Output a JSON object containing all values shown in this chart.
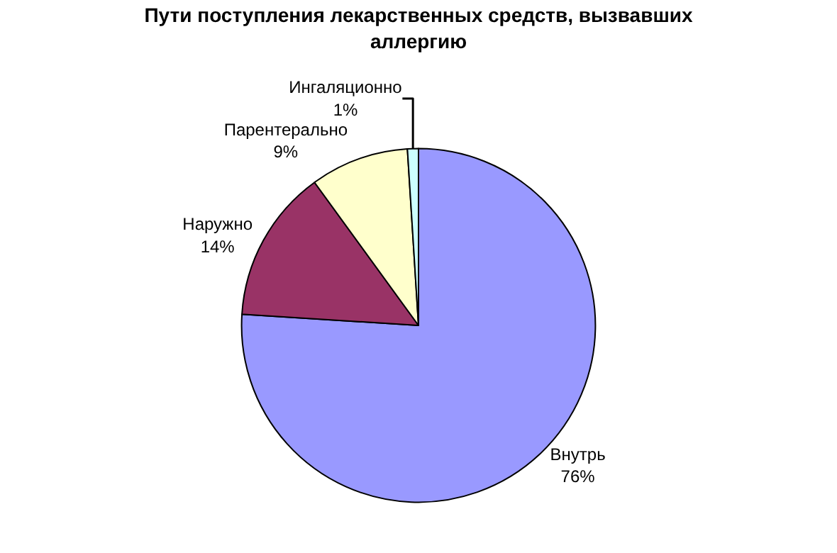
{
  "chart_data": {
    "type": "pie",
    "title": "Пути поступления лекарственных средств, вызвавших аллергию",
    "categories": [
      "Внутрь",
      "Наружно",
      "Парентерально",
      "Ингаляционно"
    ],
    "values": [
      76,
      14,
      9,
      1
    ],
    "value_labels": [
      "76%",
      "14%",
      "9%",
      "1%"
    ],
    "colors": [
      "#9999ff",
      "#993366",
      "#ffffcc",
      "#ccffff"
    ],
    "legend": false
  }
}
